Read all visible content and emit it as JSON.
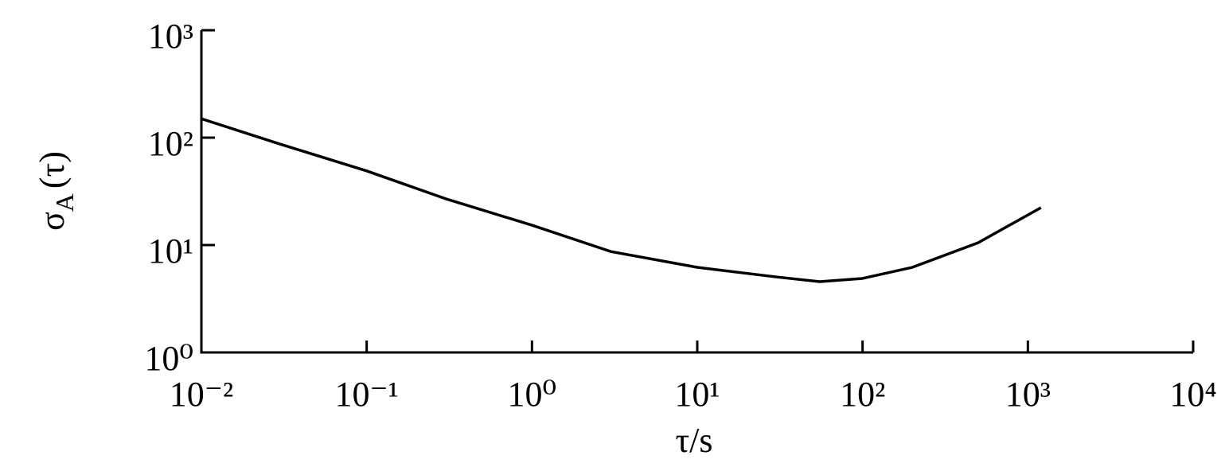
{
  "chart_data": {
    "type": "line",
    "xlabel": "τ/s",
    "ylabel": {
      "symbol": "σ",
      "subscript": "A",
      "argument": "(τ)"
    },
    "xscale": "log",
    "yscale": "log",
    "xlim": [
      0.01,
      10000
    ],
    "ylim": [
      1,
      1000
    ],
    "xticks": [
      {
        "value": 0.01,
        "label": "10⁻²"
      },
      {
        "value": 0.1,
        "label": "10⁻¹"
      },
      {
        "value": 1,
        "label": "10⁰"
      },
      {
        "value": 10,
        "label": "10¹"
      },
      {
        "value": 100,
        "label": "10²"
      },
      {
        "value": 1000,
        "label": "10³"
      },
      {
        "value": 10000,
        "label": "10⁴"
      }
    ],
    "yticks": [
      {
        "value": 1,
        "label": "10⁰"
      },
      {
        "value": 10,
        "label": "10¹"
      },
      {
        "value": 100,
        "label": "10²"
      },
      {
        "value": 1000,
        "label": "10³"
      }
    ],
    "color": "#000000",
    "x": [
      0.01,
      0.03,
      0.1,
      0.3,
      1,
      3,
      10,
      30,
      55,
      100,
      200,
      500,
      1200
    ],
    "values": [
      150,
      87,
      49,
      27,
      15.3,
      8.7,
      6.2,
      5.05,
      4.56,
      4.89,
      6.2,
      10.5,
      22.3
    ]
  }
}
